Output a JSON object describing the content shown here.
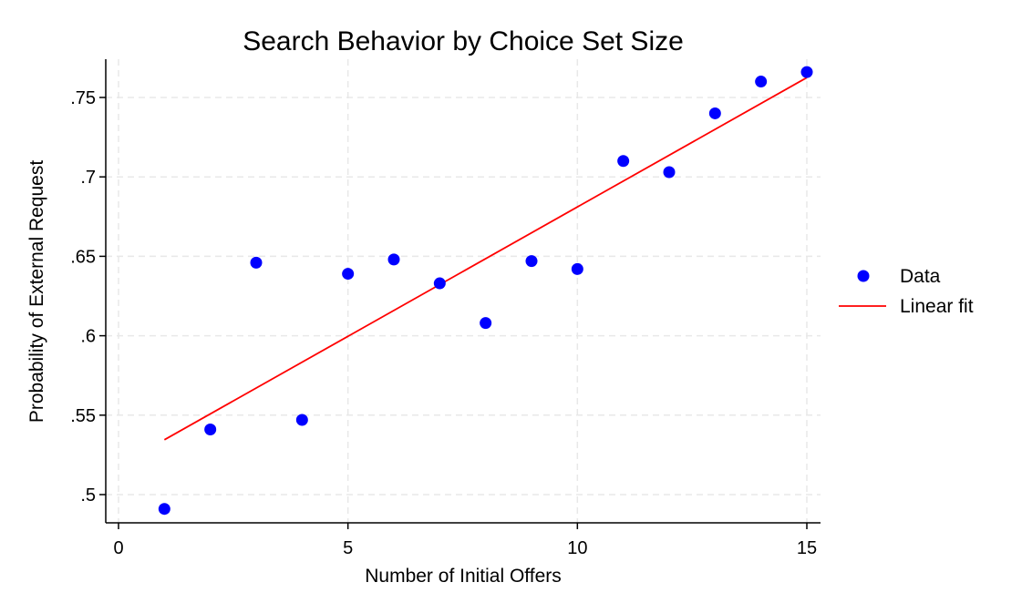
{
  "chart_data": {
    "type": "scatter",
    "title": "Search Behavior by Choice Set Size",
    "xlabel": "Number of Initial Offers",
    "ylabel": "Probability of External Request",
    "xlim": [
      0,
      15
    ],
    "ylim": [
      0.5,
      0.75
    ],
    "x_ticks": [
      0,
      5,
      10,
      15
    ],
    "x_tick_labels": [
      "0",
      "5",
      "10",
      "15"
    ],
    "y_ticks": [
      0.5,
      0.55,
      0.6,
      0.65,
      0.7,
      0.75
    ],
    "y_tick_labels": [
      ".5",
      ".55",
      ".6",
      ".65",
      ".7",
      ".75"
    ],
    "grid": true,
    "legend_position": "right",
    "series": [
      {
        "name": "Data",
        "kind": "scatter",
        "color": "#0000ff",
        "x": [
          1,
          2,
          3,
          4,
          5,
          6,
          7,
          8,
          9,
          10,
          11,
          12,
          13,
          14,
          15
        ],
        "y": [
          0.491,
          0.541,
          0.646,
          0.547,
          0.639,
          0.648,
          0.633,
          0.608,
          0.647,
          0.642,
          0.71,
          0.703,
          0.74,
          0.76,
          0.766
        ]
      },
      {
        "name": "Linear fit",
        "kind": "line",
        "color": "#ff0000",
        "x": [
          1,
          15
        ],
        "y": [
          0.5345,
          0.7625
        ]
      }
    ]
  }
}
